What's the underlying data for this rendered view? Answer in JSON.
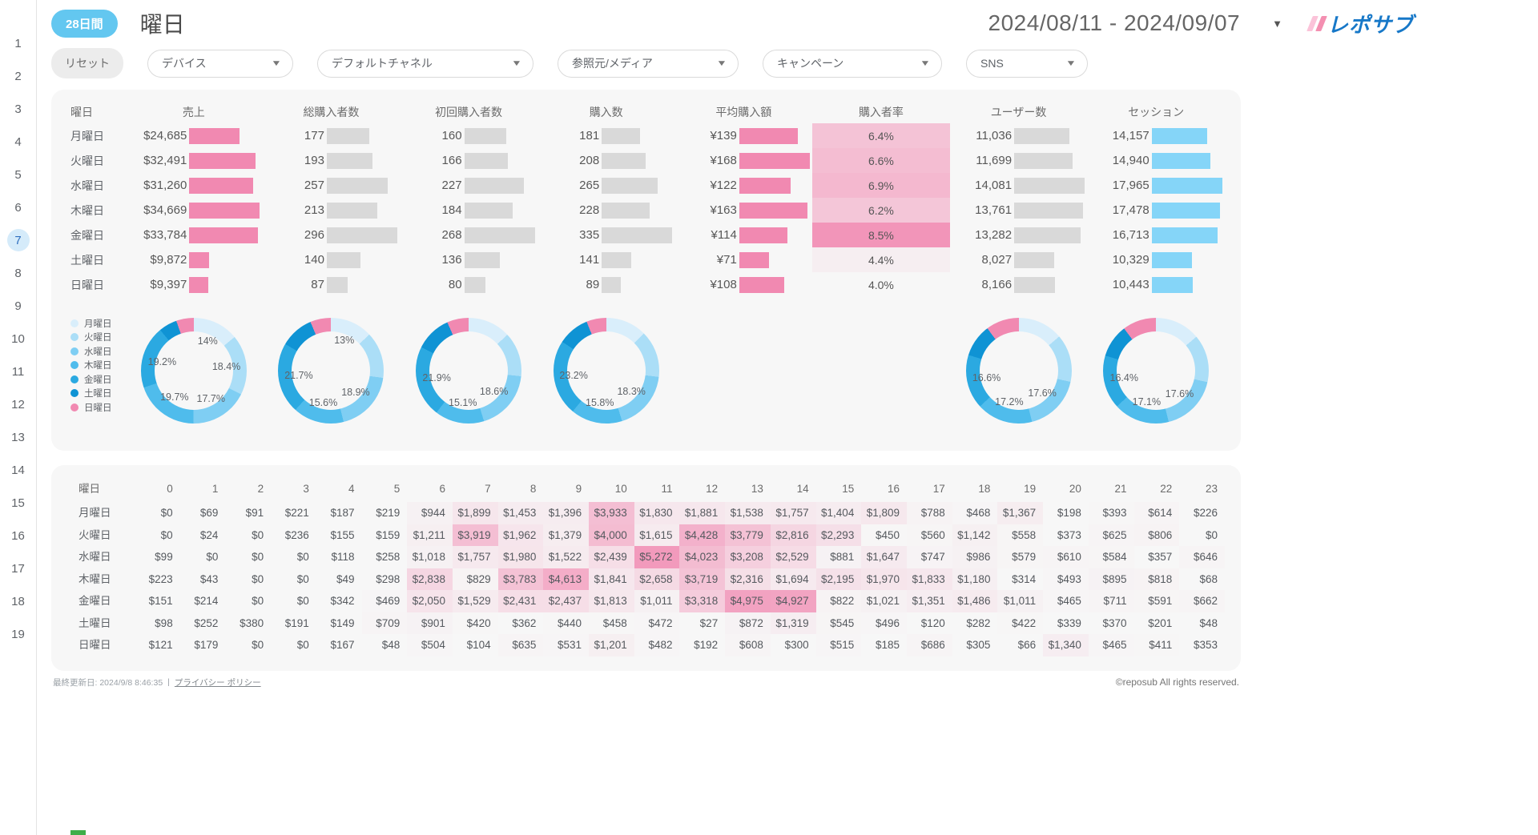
{
  "sidebar": {
    "pages": [
      "1",
      "2",
      "3",
      "4",
      "5",
      "6",
      "7",
      "8",
      "9",
      "10",
      "11",
      "12",
      "13",
      "14",
      "15",
      "16",
      "17",
      "18",
      "19"
    ],
    "selected": "7"
  },
  "header": {
    "period_badge": "28日間",
    "title": "曜日",
    "date_range": "2024/08/11 - 2024/09/07",
    "logo_text": "レポサブ"
  },
  "filters": {
    "reset": "リセット",
    "dropdowns": [
      "デバイス",
      "デフォルトチャネル",
      "参照元/メディア",
      "キャンペーン",
      "SNS"
    ]
  },
  "style": {
    "accent_pink": "#F189B1",
    "bar_gray": "#D9D9D9",
    "bar_blue": "#85D5F8",
    "badge_blue": "#63C7F0",
    "card_bg": "#F7F7F7",
    "heat_rgb": "241,137,177",
    "selected_page_bg": "#D5EBFA",
    "green_indicator": "#3FAE49",
    "donut_palette": [
      "#D9EEFB",
      "#ABDEF7",
      "#7FCEF3",
      "#4FBCEC",
      "#2BA9E1",
      "#0F93D4",
      "#F189B1"
    ]
  },
  "chart_data": [
    {
      "type": "table",
      "name": "weekday-metrics",
      "columns": [
        {
          "key": "day",
          "label": "曜日",
          "type": "day"
        },
        {
          "key": "sales",
          "label": "売上",
          "type": "bar",
          "color_key": "accent_pink",
          "prefix": "$"
        },
        {
          "key": "buyers",
          "label": "総購入者数",
          "type": "bar",
          "color_key": "bar_gray",
          "prefix": ""
        },
        {
          "key": "first_buyers",
          "label": "初回購入者数",
          "type": "bar",
          "color_key": "bar_gray",
          "prefix": ""
        },
        {
          "key": "purchases",
          "label": "購入数",
          "type": "bar",
          "color_key": "bar_gray",
          "prefix": ""
        },
        {
          "key": "avg_purchase",
          "label": "平均購入額",
          "type": "bar",
          "color_key": "accent_pink",
          "prefix": "¥"
        },
        {
          "key": "buyer_rate",
          "label": "購入者率",
          "type": "heat",
          "suffix": "%"
        },
        {
          "key": "users",
          "label": "ユーザー数",
          "type": "bar",
          "color_key": "bar_gray",
          "prefix": ""
        },
        {
          "key": "sessions",
          "label": "セッション",
          "type": "bar",
          "color_key": "bar_blue",
          "prefix": ""
        }
      ],
      "rows": [
        {
          "day": "月曜日",
          "sales": 24685,
          "buyers": 177,
          "first_buyers": 160,
          "purchases": 181,
          "avg_purchase": 139,
          "buyer_rate": 6.4,
          "users": 11036,
          "sessions": 14157
        },
        {
          "day": "火曜日",
          "sales": 32491,
          "buyers": 193,
          "first_buyers": 166,
          "purchases": 208,
          "avg_purchase": 168,
          "buyer_rate": 6.6,
          "users": 11699,
          "sessions": 14940
        },
        {
          "day": "水曜日",
          "sales": 31260,
          "buyers": 257,
          "first_buyers": 227,
          "purchases": 265,
          "avg_purchase": 122,
          "buyer_rate": 6.9,
          "users": 14081,
          "sessions": 17965
        },
        {
          "day": "木曜日",
          "sales": 34669,
          "buyers": 213,
          "first_buyers": 184,
          "purchases": 228,
          "avg_purchase": 163,
          "buyer_rate": 6.2,
          "users": 13761,
          "sessions": 17478
        },
        {
          "day": "金曜日",
          "sales": 33784,
          "buyers": 296,
          "first_buyers": 268,
          "purchases": 335,
          "avg_purchase": 114,
          "buyer_rate": 8.5,
          "users": 13282,
          "sessions": 16713
        },
        {
          "day": "土曜日",
          "sales": 9872,
          "buyers": 140,
          "first_buyers": 136,
          "purchases": 141,
          "avg_purchase": 71,
          "buyer_rate": 4.4,
          "users": 8027,
          "sessions": 10329
        },
        {
          "day": "日曜日",
          "sales": 9397,
          "buyers": 87,
          "first_buyers": 80,
          "purchases": 89,
          "avg_purchase": 108,
          "buyer_rate": 4.0,
          "users": 8166,
          "sessions": 10443
        }
      ]
    },
    {
      "type": "pie",
      "name": "sales-share",
      "metric": "売上",
      "categories": [
        "月曜日",
        "火曜日",
        "水曜日",
        "木曜日",
        "金曜日",
        "土曜日",
        "日曜日"
      ],
      "values": [
        14.0,
        18.4,
        17.7,
        19.7,
        19.2,
        5.6,
        5.4
      ],
      "labels_shown": {
        "0": "14%",
        "1": "18.4%",
        "2": "17.7%",
        "3": "19.7%",
        "4": "19.2%"
      }
    },
    {
      "type": "pie",
      "name": "buyers-share",
      "metric": "総購入者数",
      "categories": [
        "月曜日",
        "火曜日",
        "水曜日",
        "木曜日",
        "金曜日",
        "土曜日",
        "日曜日"
      ],
      "values": [
        13.0,
        14.2,
        18.9,
        15.6,
        21.7,
        10.3,
        6.3
      ],
      "labels_shown": {
        "0": "13%",
        "2": "18.9%",
        "3": "15.6%",
        "4": "21.7%"
      }
    },
    {
      "type": "pie",
      "name": "first-buyers-share",
      "metric": "初回購入者数",
      "categories": [
        "月曜日",
        "火曜日",
        "水曜日",
        "木曜日",
        "金曜日",
        "土曜日",
        "日曜日"
      ],
      "values": [
        13.1,
        13.6,
        18.6,
        15.1,
        21.9,
        11.1,
        6.6
      ],
      "labels_shown": {
        "2": "18.6%",
        "3": "15.1%",
        "4": "21.9%"
      }
    },
    {
      "type": "pie",
      "name": "purchases-share",
      "metric": "購入数",
      "categories": [
        "月曜日",
        "火曜日",
        "水曜日",
        "木曜日",
        "金曜日",
        "土曜日",
        "日曜日"
      ],
      "values": [
        12.5,
        14.4,
        18.3,
        15.8,
        23.2,
        9.7,
        6.1
      ],
      "labels_shown": {
        "2": "18.3%",
        "3": "15.8%",
        "4": "23.2%"
      }
    },
    {
      "type": "pie",
      "name": "users-share",
      "metric": "ユーザー数",
      "categories": [
        "月曜日",
        "火曜日",
        "水曜日",
        "木曜日",
        "金曜日",
        "土曜日",
        "日曜日"
      ],
      "values": [
        13.8,
        14.6,
        17.6,
        17.2,
        16.6,
        10.0,
        10.2
      ],
      "labels_shown": {
        "2": "17.6%",
        "3": "17.2%",
        "4": "16.6%"
      }
    },
    {
      "type": "pie",
      "name": "sessions-share",
      "metric": "セッション",
      "categories": [
        "月曜日",
        "火曜日",
        "水曜日",
        "木曜日",
        "金曜日",
        "土曜日",
        "日曜日"
      ],
      "values": [
        13.9,
        14.6,
        17.6,
        17.1,
        16.4,
        10.1,
        10.3
      ],
      "labels_shown": {
        "2": "17.6%",
        "3": "17.1%",
        "4": "16.4%"
      }
    },
    {
      "type": "heatmap",
      "name": "hourly-sales",
      "corner_label": "曜日",
      "value_prefix": "$",
      "x_labels": [
        "0",
        "1",
        "2",
        "3",
        "4",
        "5",
        "6",
        "7",
        "8",
        "9",
        "10",
        "11",
        "12",
        "13",
        "14",
        "15",
        "16",
        "17",
        "18",
        "19",
        "20",
        "21",
        "22",
        "23"
      ],
      "y_labels": [
        "月曜日",
        "火曜日",
        "水曜日",
        "木曜日",
        "金曜日",
        "土曜日",
        "日曜日"
      ],
      "values": [
        [
          0,
          69,
          91,
          221,
          187,
          219,
          944,
          1899,
          1453,
          1396,
          3933,
          1830,
          1881,
          1538,
          1757,
          1404,
          1809,
          788,
          468,
          1367,
          198,
          393,
          614,
          226
        ],
        [
          0,
          24,
          0,
          236,
          155,
          159,
          1211,
          3919,
          1962,
          1379,
          4000,
          1615,
          4428,
          3779,
          2816,
          2293,
          450,
          560,
          1142,
          558,
          373,
          625,
          806,
          0
        ],
        [
          99,
          0,
          0,
          0,
          118,
          258,
          1018,
          1757,
          1980,
          1522,
          2439,
          5272,
          4023,
          3208,
          2529,
          881,
          1647,
          747,
          986,
          579,
          610,
          584,
          357,
          646
        ],
        [
          223,
          43,
          0,
          0,
          49,
          298,
          2838,
          829,
          3783,
          4613,
          1841,
          2658,
          3719,
          2316,
          1694,
          2195,
          1970,
          1833,
          1180,
          314,
          493,
          895,
          818,
          68
        ],
        [
          151,
          214,
          0,
          0,
          342,
          469,
          2050,
          1529,
          2431,
          2437,
          1813,
          1011,
          3318,
          4975,
          4927,
          822,
          1021,
          1351,
          1486,
          1011,
          465,
          711,
          591,
          662
        ],
        [
          98,
          252,
          380,
          191,
          149,
          709,
          901,
          420,
          362,
          440,
          458,
          472,
          27,
          872,
          1319,
          545,
          496,
          120,
          282,
          422,
          339,
          370,
          201,
          48
        ],
        [
          121,
          179,
          0,
          0,
          167,
          48,
          504,
          104,
          635,
          531,
          1201,
          482,
          192,
          608,
          300,
          515,
          185,
          686,
          305,
          66,
          1340,
          465,
          411,
          353
        ]
      ]
    }
  ],
  "footer": {
    "last_updated": "最終更新日: 2024/9/8 8:46:35",
    "separator": "|",
    "privacy_link": "プライバシー ポリシー",
    "copyright": "©reposub All rights reserved."
  }
}
